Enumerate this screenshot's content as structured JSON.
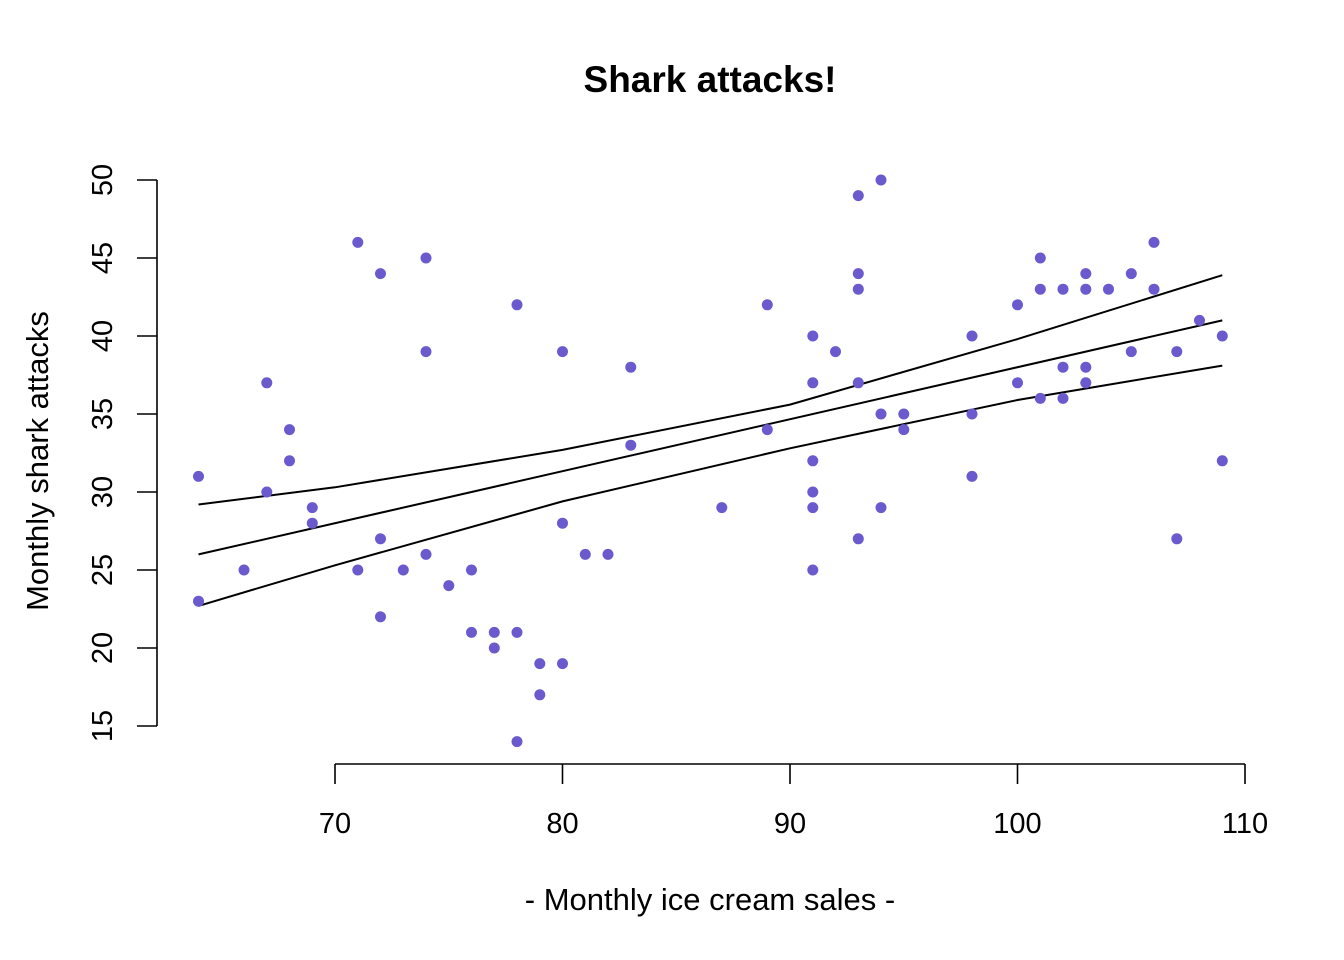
{
  "chart_data": {
    "type": "scatter",
    "title": "Shark attacks!",
    "xlabel": "- Monthly ice cream sales -",
    "ylabel": "Monthly shark attacks",
    "xlim": [
      64,
      109
    ],
    "ylim": [
      14,
      50
    ],
    "x_ticks": [
      70,
      80,
      90,
      100,
      110
    ],
    "y_ticks": [
      15,
      20,
      25,
      30,
      35,
      40,
      45,
      50
    ],
    "grid": false,
    "point_color": "#6A5ACD",
    "line_color": "#000000",
    "points": [
      {
        "x": 64,
        "y": 31
      },
      {
        "x": 64,
        "y": 23
      },
      {
        "x": 66,
        "y": 25
      },
      {
        "x": 67,
        "y": 37
      },
      {
        "x": 67,
        "y": 30
      },
      {
        "x": 68,
        "y": 34
      },
      {
        "x": 68,
        "y": 32
      },
      {
        "x": 69,
        "y": 29
      },
      {
        "x": 69,
        "y": 28
      },
      {
        "x": 71,
        "y": 46
      },
      {
        "x": 71,
        "y": 25
      },
      {
        "x": 72,
        "y": 44
      },
      {
        "x": 72,
        "y": 27
      },
      {
        "x": 72,
        "y": 22
      },
      {
        "x": 73,
        "y": 25
      },
      {
        "x": 74,
        "y": 45
      },
      {
        "x": 74,
        "y": 39
      },
      {
        "x": 74,
        "y": 26
      },
      {
        "x": 75,
        "y": 24
      },
      {
        "x": 76,
        "y": 25
      },
      {
        "x": 76,
        "y": 21
      },
      {
        "x": 77,
        "y": 21
      },
      {
        "x": 77,
        "y": 20
      },
      {
        "x": 78,
        "y": 42
      },
      {
        "x": 78,
        "y": 21
      },
      {
        "x": 78,
        "y": 14
      },
      {
        "x": 79,
        "y": 19
      },
      {
        "x": 79,
        "y": 17
      },
      {
        "x": 80,
        "y": 39
      },
      {
        "x": 80,
        "y": 28
      },
      {
        "x": 80,
        "y": 19
      },
      {
        "x": 81,
        "y": 26
      },
      {
        "x": 82,
        "y": 26
      },
      {
        "x": 83,
        "y": 38
      },
      {
        "x": 83,
        "y": 33
      },
      {
        "x": 87,
        "y": 29
      },
      {
        "x": 89,
        "y": 42
      },
      {
        "x": 89,
        "y": 34
      },
      {
        "x": 91,
        "y": 40
      },
      {
        "x": 91,
        "y": 37
      },
      {
        "x": 91,
        "y": 32
      },
      {
        "x": 91,
        "y": 30
      },
      {
        "x": 91,
        "y": 29
      },
      {
        "x": 91,
        "y": 25
      },
      {
        "x": 92,
        "y": 39
      },
      {
        "x": 93,
        "y": 49
      },
      {
        "x": 93,
        "y": 44
      },
      {
        "x": 93,
        "y": 43
      },
      {
        "x": 93,
        "y": 37
      },
      {
        "x": 93,
        "y": 27
      },
      {
        "x": 94,
        "y": 50
      },
      {
        "x": 94,
        "y": 35
      },
      {
        "x": 94,
        "y": 29
      },
      {
        "x": 95,
        "y": 35
      },
      {
        "x": 95,
        "y": 34
      },
      {
        "x": 98,
        "y": 40
      },
      {
        "x": 98,
        "y": 35
      },
      {
        "x": 98,
        "y": 31
      },
      {
        "x": 100,
        "y": 42
      },
      {
        "x": 100,
        "y": 37
      },
      {
        "x": 101,
        "y": 45
      },
      {
        "x": 101,
        "y": 43
      },
      {
        "x": 101,
        "y": 36
      },
      {
        "x": 102,
        "y": 43
      },
      {
        "x": 102,
        "y": 38
      },
      {
        "x": 102,
        "y": 36
      },
      {
        "x": 103,
        "y": 44
      },
      {
        "x": 103,
        "y": 43
      },
      {
        "x": 103,
        "y": 38
      },
      {
        "x": 103,
        "y": 37
      },
      {
        "x": 104,
        "y": 43
      },
      {
        "x": 105,
        "y": 44
      },
      {
        "x": 105,
        "y": 39
      },
      {
        "x": 106,
        "y": 46
      },
      {
        "x": 106,
        "y": 43
      },
      {
        "x": 107,
        "y": 39
      },
      {
        "x": 107,
        "y": 27
      },
      {
        "x": 108,
        "y": 41
      },
      {
        "x": 109,
        "y": 40
      },
      {
        "x": 109,
        "y": 32
      }
    ],
    "lines": [
      {
        "x": [
          64,
          70,
          80,
          90,
          100,
          109
        ],
        "y": [
          29.2,
          30.3,
          32.7,
          35.6,
          39.8,
          43.9
        ]
      },
      {
        "x": [
          64,
          109
        ],
        "y": [
          26.0,
          41.0
        ]
      },
      {
        "x": [
          64,
          70,
          80,
          90,
          100,
          109
        ],
        "y": [
          22.7,
          25.3,
          29.4,
          32.8,
          35.9,
          38.1
        ]
      }
    ]
  }
}
